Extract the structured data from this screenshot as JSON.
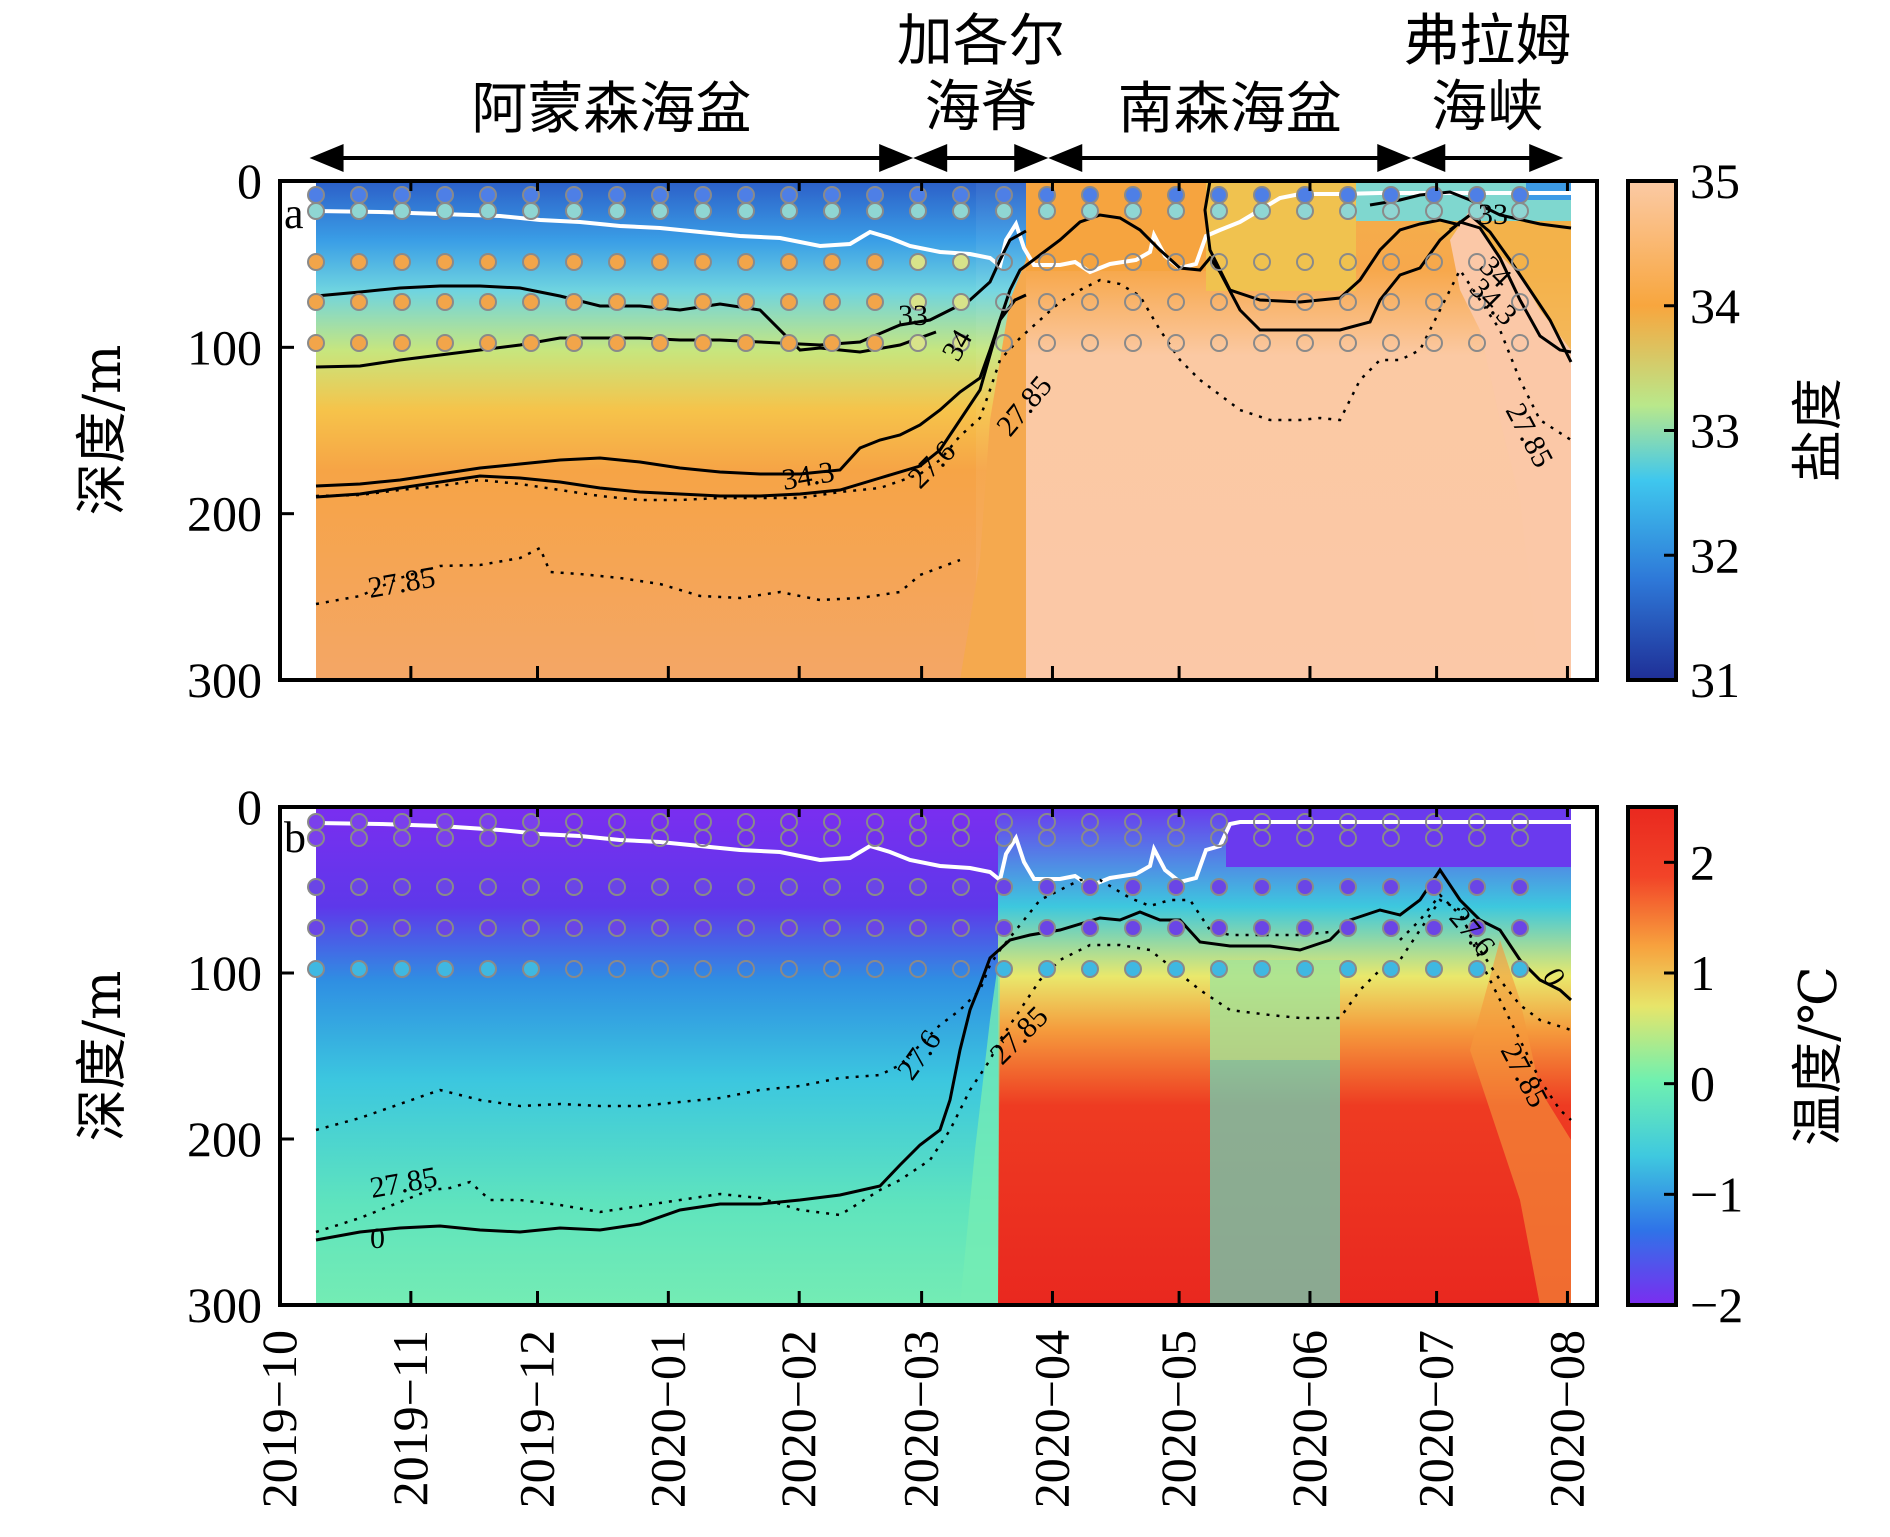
{
  "regions": [
    {
      "lines": [
        "阿蒙森海盆"
      ],
      "start": "2019-10-08",
      "end": "2020-02-28"
    },
    {
      "lines": [
        "加各尔",
        "海脊"
      ],
      "start": "2020-02-28",
      "end": "2020-03-31"
    },
    {
      "lines": [
        "南森海盆"
      ],
      "start": "2020-03-31",
      "end": "2020-06-25"
    },
    {
      "lines": [
        "弗拉姆",
        "海峡"
      ],
      "start": "2020-06-25",
      "end": "2020-07-31"
    }
  ],
  "x_axis": {
    "start": "2019-10-01",
    "end": "2020-08-08",
    "ticks": [
      "2019-10",
      "2019-11",
      "2019-12",
      "2020-01",
      "2020-02",
      "2020-03",
      "2020-04",
      "2020-05",
      "2020-06",
      "2020-07",
      "2020-08"
    ]
  },
  "chart_data": [
    {
      "type": "heatmap",
      "panel": "a",
      "ylabel": "深度/m",
      "ylim": [
        300,
        0
      ],
      "yticks": [
        0,
        100,
        200,
        300
      ],
      "colorbar": {
        "label": "盐度",
        "ticks": [
          "31",
          "32",
          "33",
          "34",
          "35"
        ],
        "range": [
          31,
          35
        ],
        "colors": [
          "#1f2f96",
          "#2e78d8",
          "#3fc7ee",
          "#b9e88b",
          "#f8a63e",
          "#fbcaa5"
        ]
      },
      "contour_labels": [
        "33",
        "34",
        "34.3",
        "27.6",
        "27.85",
        "27.85",
        "33",
        "34",
        "34.3",
        "27.85"
      ]
    },
    {
      "type": "heatmap",
      "panel": "b",
      "ylabel": "深度/m",
      "ylim": [
        300,
        0
      ],
      "yticks": [
        0,
        100,
        200,
        300
      ],
      "colorbar": {
        "label": "温度/℃",
        "ticks": [
          "−2",
          "−1",
          "0",
          "1",
          "2"
        ],
        "range": [
          -2,
          2.5
        ],
        "colors": [
          "#7b2df0",
          "#2f73e8",
          "#3fc9df",
          "#6ff0b0",
          "#e7e56a",
          "#f7a23e",
          "#f24428",
          "#e9281f"
        ]
      },
      "contour_labels": [
        "27.85",
        "0",
        "27.6",
        "27.85",
        "27.6",
        "27.85",
        "0"
      ]
    }
  ]
}
